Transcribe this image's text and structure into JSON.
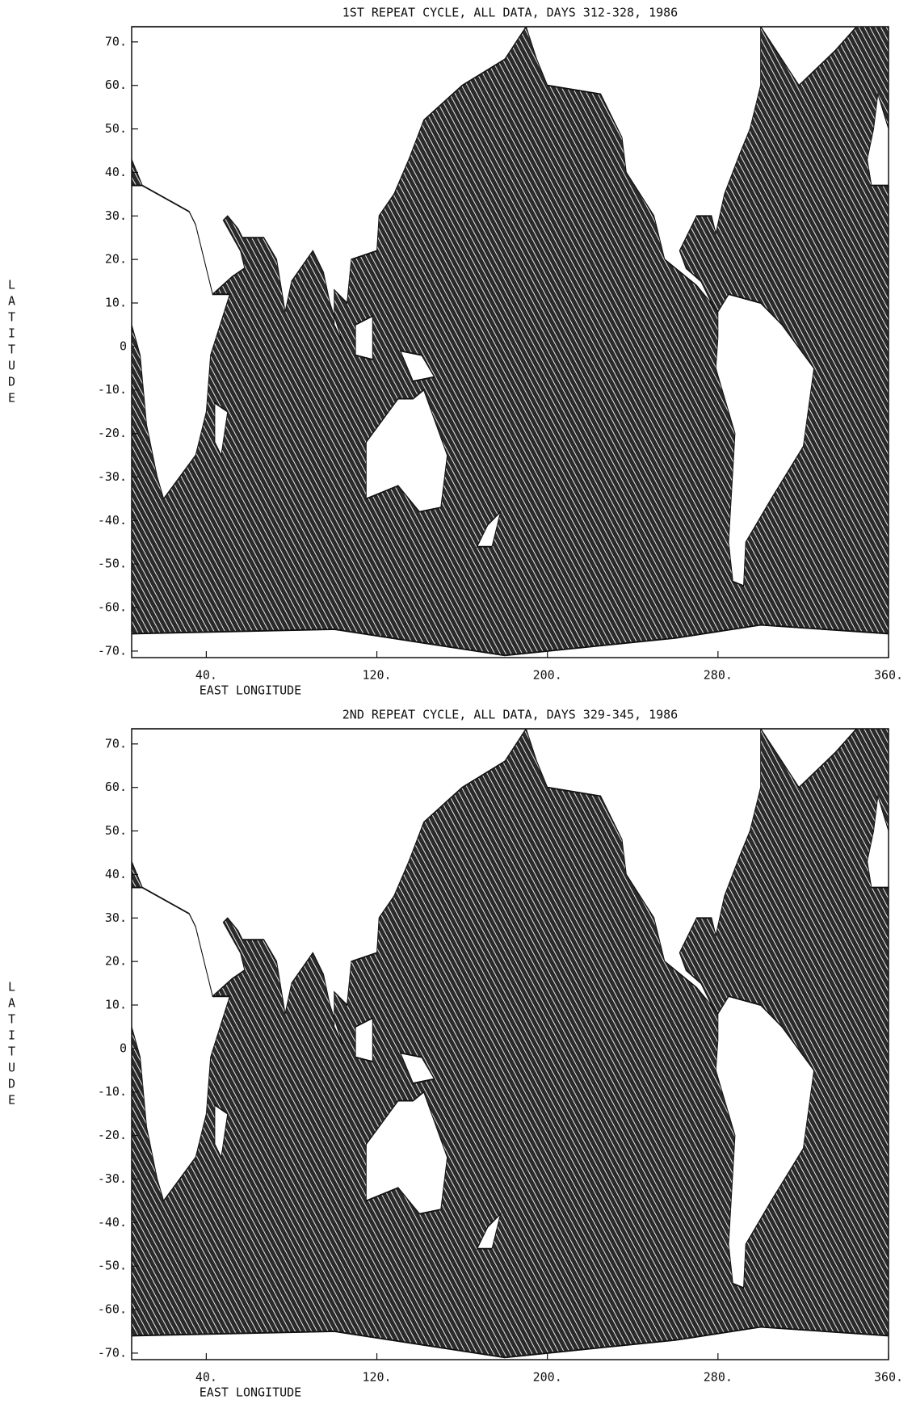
{
  "panels": [
    {
      "title": "1ST REPEAT CYCLE, ALL DATA, DAYS 312-328, 1986",
      "x_label": "EAST LONGITUDE",
      "y_label": "LATITUDE",
      "xlim": [
        5,
        360
      ],
      "ylim": [
        -71.5,
        73.5
      ],
      "xticks": [
        {
          "value": 40,
          "label": "40."
        },
        {
          "value": 120,
          "label": "120."
        },
        {
          "value": 200,
          "label": "200."
        },
        {
          "value": 280,
          "label": "280."
        },
        {
          "value": 360,
          "label": "360."
        }
      ],
      "yticks": [
        {
          "value": 70,
          "label": "70."
        },
        {
          "value": 60,
          "label": "60."
        },
        {
          "value": 50,
          "label": "50."
        },
        {
          "value": 40,
          "label": "40."
        },
        {
          "value": 30,
          "label": "30."
        },
        {
          "value": 20,
          "label": "20."
        },
        {
          "value": 10,
          "label": "10."
        },
        0,
        {
          "value": -10,
          "label": "-10."
        },
        {
          "value": -20,
          "label": "-20."
        },
        {
          "value": -30,
          "label": "-30."
        },
        {
          "value": -40,
          "label": "-40."
        },
        {
          "value": -50,
          "label": "-50."
        },
        {
          "value": -60,
          "label": "-60."
        },
        {
          "value": -70,
          "label": "-70."
        }
      ]
    },
    {
      "title": "2ND REPEAT CYCLE, ALL DATA, DAYS 329-345, 1986",
      "x_label": "EAST LONGITUDE",
      "y_label": "LATITUDE",
      "xlim": [
        5,
        360
      ],
      "ylim": [
        -71.5,
        73.5
      ],
      "xticks": [
        {
          "value": 40,
          "label": "40."
        },
        {
          "value": 120,
          "label": "120."
        },
        {
          "value": 200,
          "label": "200."
        },
        {
          "value": 280,
          "label": "280."
        },
        {
          "value": 360,
          "label": "360."
        }
      ],
      "yticks": [
        {
          "value": 70,
          "label": "70."
        },
        {
          "value": 60,
          "label": "60."
        },
        {
          "value": 50,
          "label": "50."
        },
        {
          "value": 40,
          "label": "40."
        },
        {
          "value": 30,
          "label": "30."
        },
        {
          "value": 20,
          "label": "20."
        },
        {
          "value": 10,
          "label": "10."
        },
        0,
        {
          "value": -10,
          "label": "-10."
        },
        {
          "value": -20,
          "label": "-20."
        },
        {
          "value": -30,
          "label": "-30."
        },
        {
          "value": -40,
          "label": "-40."
        },
        {
          "value": -50,
          "label": "-50."
        },
        {
          "value": -60,
          "label": "-60."
        },
        {
          "value": -70,
          "label": "-70."
        }
      ]
    }
  ]
}
